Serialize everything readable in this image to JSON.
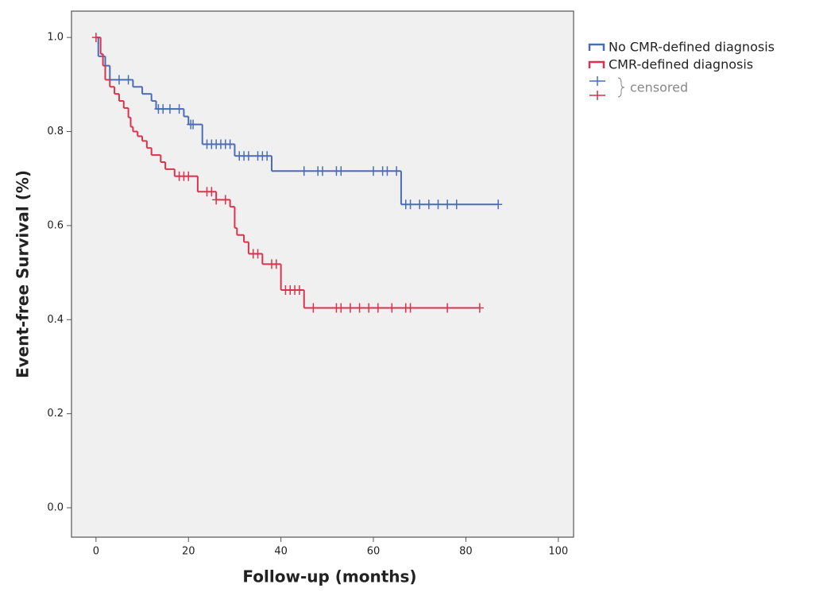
{
  "chart_data": {
    "type": "kaplan-meier",
    "x_label": "Follow-up (months)",
    "y_label": "Event-free Survival (%)",
    "xlim": [
      -5.3,
      103.3
    ],
    "ylim": [
      -0.0625,
      1.056
    ],
    "xticks": [
      0,
      20,
      40,
      60,
      80,
      100
    ],
    "yticks": [
      {
        "value": 0,
        "label": "0.0"
      },
      0.2,
      0.4,
      0.6,
      0.8,
      {
        "value": 1,
        "label": "1.0"
      }
    ],
    "censored_label": "censored",
    "series": [
      {
        "name": "No CMR-defined diagnosis",
        "color": "#4a6db5",
        "x": [
          0,
          0.5,
          2,
          3,
          8,
          10,
          12,
          13,
          19,
          20,
          23,
          30,
          38,
          66
        ],
        "values": [
          1,
          0.96,
          0.94,
          0.91,
          0.895,
          0.88,
          0.865,
          0.848,
          0.832,
          0.815,
          0.773,
          0.748,
          0.716,
          0.645
        ],
        "censored_x": [
          5,
          7,
          13.5,
          14.5,
          16,
          18,
          20.5,
          21,
          24,
          25,
          26,
          27,
          28,
          29,
          31,
          32,
          33,
          35,
          36,
          37,
          45,
          48,
          49,
          52,
          53,
          60,
          62,
          63,
          65,
          67,
          68,
          70,
          72,
          74,
          76,
          78,
          87
        ]
      },
      {
        "name": "CMR-defined diagnosis",
        "color": "#d9344f",
        "x": [
          0,
          1,
          1.5,
          2,
          3,
          4,
          5,
          6,
          7,
          7.5,
          8,
          9,
          10,
          11,
          12,
          14,
          15,
          17,
          22,
          26,
          29,
          30,
          30.5,
          32,
          33,
          36,
          40,
          45
        ],
        "values": [
          1,
          0.965,
          0.94,
          0.91,
          0.895,
          0.88,
          0.865,
          0.85,
          0.83,
          0.81,
          0.8,
          0.79,
          0.78,
          0.765,
          0.75,
          0.735,
          0.72,
          0.705,
          0.672,
          0.655,
          0.64,
          0.595,
          0.58,
          0.565,
          0.54,
          0.518,
          0.463,
          0.425
        ],
        "censored_x": [
          0,
          18,
          19,
          20,
          24,
          25,
          26,
          28,
          34,
          35,
          38,
          39,
          41,
          42,
          43,
          44,
          47,
          52,
          53,
          55,
          57,
          59,
          61,
          64,
          67,
          68,
          76,
          83
        ]
      }
    ]
  }
}
